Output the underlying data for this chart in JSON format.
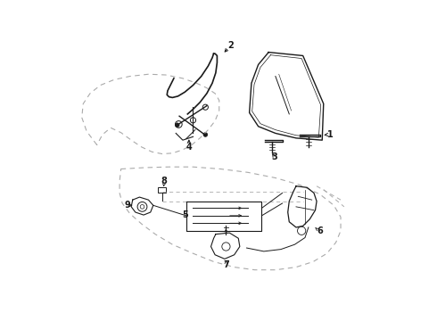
{
  "background_color": "#ffffff",
  "line_color": "#1a1a1a",
  "dashed_color": "#aaaaaa",
  "fig_width": 4.9,
  "fig_height": 3.6,
  "dpi": 100
}
